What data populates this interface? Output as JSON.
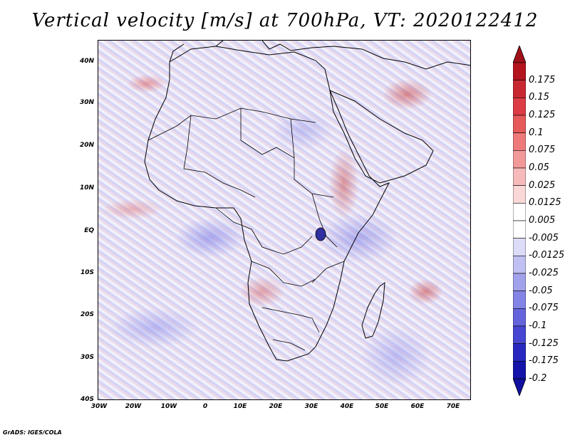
{
  "title": "Vertical velocity [m/s] at 700hPa, VT: 2020122412",
  "y_axis_labels": [
    "40N",
    "30N",
    "20N",
    "10N",
    "EQ",
    "10S",
    "20S",
    "30S",
    "40S"
  ],
  "x_axis_labels": [
    "30W",
    "20W",
    "10W",
    "0",
    "10E",
    "20E",
    "30E",
    "40E",
    "50E",
    "60E",
    "70E"
  ],
  "colorbar": {
    "labels": [
      "0.175",
      "0.15",
      "0.125",
      "0.1",
      "0.075",
      "0.05",
      "0.025",
      "0.0125",
      "0.005",
      "-0.005",
      "-0.0125",
      "-0.025",
      "-0.05",
      "-0.075",
      "-0.1",
      "-0.125",
      "-0.175",
      "-0.2"
    ],
    "colors": [
      "#b4141e",
      "#c82832",
      "#dc3c46",
      "#e65a5a",
      "#ee7a7a",
      "#f29a9a",
      "#f6baba",
      "#fad8d8",
      "#ffffff",
      "#ffffff",
      "#dcdcf8",
      "#c0c0f2",
      "#a2a2ec",
      "#8484e6",
      "#6464dc",
      "#4646d2",
      "#2828c0",
      "#1414aa"
    ]
  },
  "footer": "GrADS: IGES/COLA"
}
